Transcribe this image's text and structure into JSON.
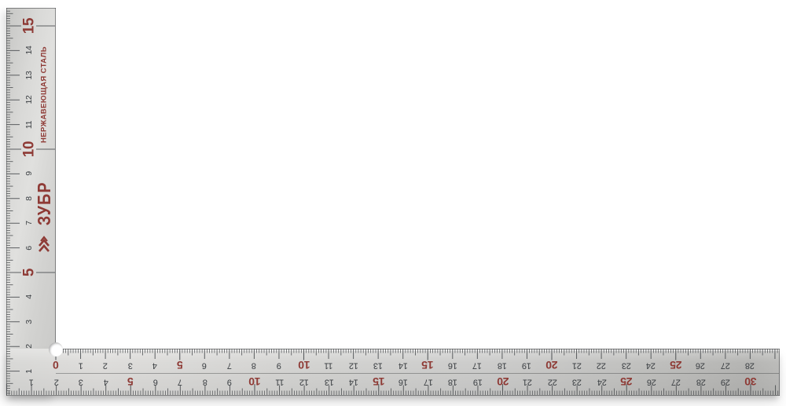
{
  "photo": {
    "subject": "carpenter-square",
    "background_color": "#ffffff"
  },
  "colors": {
    "metal_light": "#dedddb",
    "metal_dark": "#b5b5b3",
    "tick": "#4a4d50",
    "number_dark": "#3a3e42",
    "accent_red": "#8e3a35"
  },
  "brand": {
    "name": "ЗУБР",
    "logo_icon": "zubr-double-chevron",
    "material": "НЕРЖАВЕЮЩАЯ СТАЛЬ"
  },
  "scales": {
    "red_label_interval": 5,
    "vertical": {
      "labels": [
        "1",
        "2",
        "3",
        "4",
        "5",
        "6",
        "7",
        "8",
        "9",
        "10",
        "11",
        "12",
        "13",
        "14",
        "15"
      ]
    },
    "horizontal_inner": {
      "labels": [
        "0",
        "1",
        "2",
        "3",
        "4",
        "5",
        "6",
        "7",
        "8",
        "9",
        "10",
        "11",
        "12",
        "13",
        "14",
        "15",
        "16",
        "17",
        "18",
        "19",
        "20",
        "21",
        "22",
        "23",
        "24",
        "25",
        "26",
        "27",
        "28"
      ]
    },
    "horizontal_outer": {
      "labels": [
        "1",
        "2",
        "3",
        "4",
        "5",
        "6",
        "7",
        "8",
        "9",
        "10",
        "11",
        "12",
        "13",
        "14",
        "15",
        "16",
        "17",
        "18",
        "19",
        "20",
        "21",
        "22",
        "23",
        "24",
        "25",
        "26",
        "27",
        "28",
        "29",
        "30"
      ]
    }
  }
}
